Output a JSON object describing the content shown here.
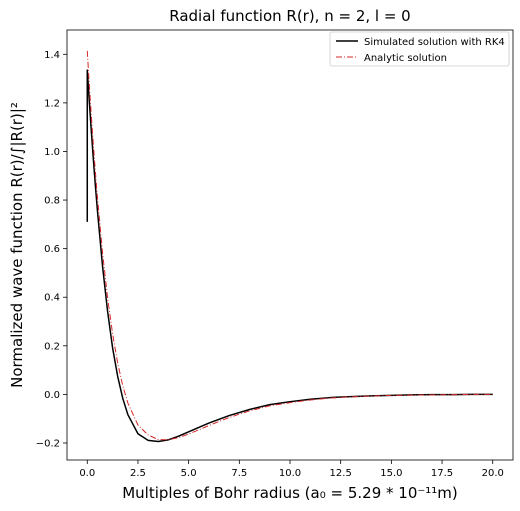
{
  "chart_data": {
    "type": "line",
    "title": "Radial function R(r), n = 2, l = 0",
    "xlabel": "Multiples of Bohr radius (a₀ = 5.29 * 10⁻¹¹m)",
    "ylabel": "Normalized wave function R(r)/∫|R(r)|²",
    "xlim": [
      -1.0,
      21.0
    ],
    "ylim": [
      -0.27,
      1.5
    ],
    "xticks": [
      0.0,
      2.5,
      5.0,
      7.5,
      10.0,
      12.5,
      15.0,
      17.5,
      20.0
    ],
    "xtick_labels": [
      "0.0",
      "2.5",
      "5.0",
      "7.5",
      "10.0",
      "12.5",
      "15.0",
      "17.5",
      "20.0"
    ],
    "yticks": [
      -0.2,
      0.0,
      0.2,
      0.4,
      0.6,
      0.8,
      1.0,
      1.2,
      1.4
    ],
    "ytick_labels": [
      "−0.2",
      "0.0",
      "0.2",
      "0.4",
      "0.6",
      "0.8",
      "1.0",
      "1.2",
      "1.4"
    ],
    "grid": false,
    "legend_position": "top-right",
    "series": [
      {
        "name": "Simulated solution with RK4",
        "style": "solid",
        "color": "#000000",
        "x": [
          0.0,
          0.0,
          0.05,
          0.1,
          0.2,
          0.3,
          0.4,
          0.5,
          0.75,
          1.0,
          1.25,
          1.5,
          1.75,
          2.0,
          2.5,
          3.0,
          3.5,
          4.0,
          4.5,
          5.0,
          5.5,
          6.0,
          7.0,
          8.0,
          9.0,
          10.0,
          11.0,
          12.0,
          13.0,
          14.0,
          15.0,
          16.0,
          17.0,
          18.0,
          19.0,
          20.0
        ],
        "y": [
          0.71,
          1.335,
          1.271,
          1.207,
          1.084,
          0.968,
          0.859,
          0.757,
          0.53,
          0.343,
          0.191,
          0.074,
          -0.016,
          -0.083,
          -0.162,
          -0.189,
          -0.194,
          -0.187,
          -0.172,
          -0.154,
          -0.136,
          -0.118,
          -0.087,
          -0.062,
          -0.042,
          -0.03,
          -0.02,
          -0.013,
          -0.009,
          -0.006,
          -0.004,
          -0.002,
          -0.001,
          -0.001,
          0.0,
          0.0
        ]
      },
      {
        "name": "Analytic solution",
        "style": "dashdot",
        "color": "#d62728",
        "x": [
          0.0,
          0.05,
          0.1,
          0.2,
          0.3,
          0.4,
          0.5,
          0.75,
          1.0,
          1.25,
          1.5,
          1.75,
          2.0,
          2.5,
          3.0,
          3.5,
          4.0,
          4.5,
          5.0,
          5.5,
          6.0,
          7.0,
          8.0,
          9.0,
          10.0,
          11.0,
          12.0,
          13.0,
          14.0,
          15.0,
          16.0,
          17.0,
          18.0,
          19.0,
          20.0
        ],
        "y": [
          1.414,
          1.343,
          1.275,
          1.146,
          1.028,
          0.916,
          0.813,
          0.585,
          0.399,
          0.249,
          0.129,
          0.036,
          -0.035,
          -0.126,
          -0.167,
          -0.186,
          -0.187,
          -0.178,
          -0.163,
          -0.146,
          -0.128,
          -0.095,
          -0.068,
          -0.047,
          -0.034,
          -0.023,
          -0.015,
          -0.01,
          -0.007,
          -0.004,
          -0.003,
          -0.002,
          -0.001,
          0.0,
          0.0
        ]
      }
    ]
  }
}
